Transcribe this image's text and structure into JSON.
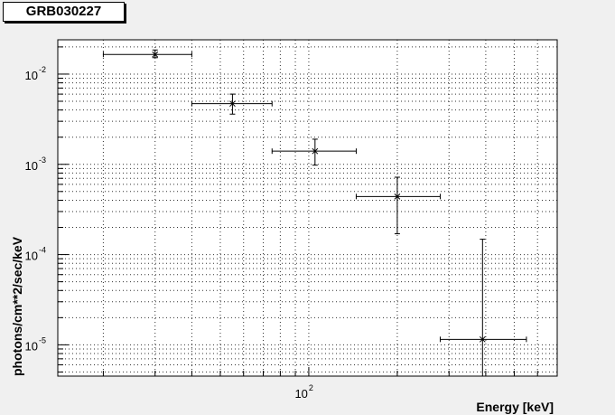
{
  "chart_data": {
    "type": "scatter",
    "title": "GRB030227",
    "xlabel": "Energy [keV]",
    "ylabel": "photons/cm**2/sec/keV",
    "x_scale": "log",
    "y_scale": "log",
    "xlim": [
      14,
      700
    ],
    "ylim": [
      4.5e-06,
      0.024
    ],
    "x_tick_label": {
      "base": "10",
      "exponent": "2",
      "value": 100
    },
    "y_tick_labels": [
      {
        "base": "10",
        "exponent": "-2",
        "value": 0.01
      },
      {
        "base": "10",
        "exponent": "-3",
        "value": 0.001
      },
      {
        "base": "10",
        "exponent": "-4",
        "value": 0.0001
      },
      {
        "base": "10",
        "exponent": "-5",
        "value": 1e-05
      }
    ],
    "grid": true,
    "points": [
      {
        "x": 30,
        "y": 0.0165,
        "xerr_low": 20,
        "xerr_high": 40,
        "yerr_low": 0.0152,
        "yerr_high": 0.0185
      },
      {
        "x": 55,
        "y": 0.0047,
        "xerr_low": 40,
        "xerr_high": 75,
        "yerr_low": 0.0036,
        "yerr_high": 0.006
      },
      {
        "x": 105,
        "y": 0.0014,
        "xerr_low": 75,
        "xerr_high": 145,
        "yerr_low": 0.00098,
        "yerr_high": 0.0019
      },
      {
        "x": 200,
        "y": 0.00044,
        "xerr_low": 145,
        "xerr_high": 280,
        "yerr_low": 0.00017,
        "yerr_high": 0.00072
      },
      {
        "x": 390,
        "y": 1.15e-05,
        "xerr_low": 280,
        "xerr_high": 550,
        "yerr_low": 4.5e-06,
        "yerr_high": 0.000148
      }
    ]
  }
}
